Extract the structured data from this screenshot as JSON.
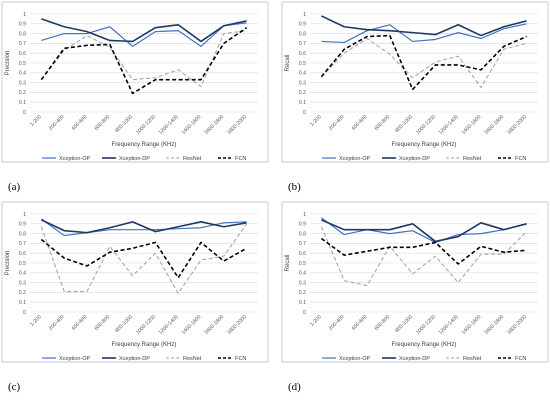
{
  "colors": {
    "Xception-OP": "#4472c4",
    "Xception-DP": "#1f3864",
    "ResNet": "#a6a6a6",
    "FCN": "#000000"
  },
  "chart_data": [
    {
      "panel": "(a)",
      "type": "line",
      "categories": [
        "1-200",
        "200-400",
        "400-600",
        "600-800",
        "800-1000",
        "1000-1200",
        "1200-1400",
        "1400-1600",
        "1600-1800",
        "1800-2000"
      ],
      "xlabel": "Frequency Range (KHz)",
      "ylabel": "Precision",
      "ylim": [
        0,
        1
      ],
      "yticks": [
        "0",
        "0.1",
        "0.2",
        "0.3",
        "0.4",
        "0.5",
        "0.6",
        "0.7",
        "0.8",
        "0.9",
        "1"
      ],
      "grid": true,
      "legend": "bottom",
      "series": [
        {
          "name": "Xception-OP",
          "style": "solid",
          "values": [
            0.73,
            0.8,
            0.8,
            0.87,
            0.67,
            0.82,
            0.83,
            0.67,
            0.88,
            0.91
          ]
        },
        {
          "name": "Xception-DP",
          "style": "solid",
          "values": [
            0.95,
            0.87,
            0.82,
            0.73,
            0.72,
            0.86,
            0.89,
            0.72,
            0.88,
            0.93
          ]
        },
        {
          "name": "ResNet",
          "style": "dashed",
          "values": [
            0.33,
            0.63,
            0.78,
            0.66,
            0.33,
            0.35,
            0.43,
            0.26,
            0.8,
            0.83
          ]
        },
        {
          "name": "FCN",
          "style": "dashed",
          "values": [
            0.33,
            0.65,
            0.68,
            0.69,
            0.19,
            0.33,
            0.33,
            0.33,
            0.7,
            0.86
          ]
        }
      ]
    },
    {
      "panel": "(b)",
      "type": "line",
      "categories": [
        "1-200",
        "200-400",
        "400-600",
        "600-800",
        "800-1000",
        "1000-1200",
        "1200-1400",
        "1400-1600",
        "1600-1800",
        "1800-2000"
      ],
      "xlabel": "Frequency Range (KHz)",
      "ylabel": "Recall",
      "ylim": [
        0,
        1
      ],
      "yticks": [
        "0",
        "0.1",
        "0.2",
        "0.3",
        "0.4",
        "0.5",
        "0.6",
        "0.7",
        "0.8",
        "0.9",
        "1"
      ],
      "grid": true,
      "legend": "bottom",
      "series": [
        {
          "name": "Xception-OP",
          "style": "solid",
          "values": [
            0.72,
            0.71,
            0.83,
            0.89,
            0.72,
            0.74,
            0.81,
            0.75,
            0.85,
            0.9
          ]
        },
        {
          "name": "Xception-DP",
          "style": "solid",
          "values": [
            0.98,
            0.87,
            0.84,
            0.83,
            0.81,
            0.79,
            0.89,
            0.78,
            0.87,
            0.93
          ]
        },
        {
          "name": "ResNet",
          "style": "dashed",
          "values": [
            0.36,
            0.6,
            0.75,
            0.59,
            0.35,
            0.51,
            0.57,
            0.25,
            0.64,
            0.7
          ]
        },
        {
          "name": "FCN",
          "style": "dashed",
          "values": [
            0.36,
            0.64,
            0.77,
            0.78,
            0.23,
            0.48,
            0.48,
            0.43,
            0.67,
            0.77
          ]
        }
      ]
    },
    {
      "panel": "(c)",
      "type": "line",
      "categories": [
        "1-200",
        "200-400",
        "400-600",
        "600-800",
        "800-1000",
        "1000-1200",
        "1200-1400",
        "1400-1600",
        "1600-1800",
        "1800-2000"
      ],
      "xlabel": "Frequency Range (KHz)",
      "ylabel": "Precision",
      "ylim": [
        0,
        1
      ],
      "yticks": [
        "0",
        "0.1",
        "0.2",
        "0.3",
        "0.4",
        "0.5",
        "0.6",
        "0.7",
        "0.8",
        "0.9",
        "1"
      ],
      "grid": true,
      "legend": "bottom",
      "series": [
        {
          "name": "Xception-OP",
          "style": "solid",
          "values": [
            0.95,
            0.78,
            0.81,
            0.84,
            0.84,
            0.84,
            0.85,
            0.86,
            0.91,
            0.92
          ]
        },
        {
          "name": "Xception-DP",
          "style": "solid",
          "values": [
            0.94,
            0.83,
            0.81,
            0.86,
            0.92,
            0.82,
            0.87,
            0.92,
            0.87,
            0.91
          ]
        },
        {
          "name": "ResNet",
          "style": "dashed",
          "values": [
            0.87,
            0.21,
            0.21,
            0.67,
            0.37,
            0.6,
            0.19,
            0.53,
            0.57,
            0.9
          ]
        },
        {
          "name": "FCN",
          "style": "dashed",
          "values": [
            0.74,
            0.55,
            0.47,
            0.61,
            0.65,
            0.71,
            0.35,
            0.71,
            0.52,
            0.65
          ]
        }
      ]
    },
    {
      "panel": "(d)",
      "type": "line",
      "categories": [
        "1-200",
        "200-400",
        "400-600",
        "600-800",
        "800-1000",
        "1000-1200",
        "1200-1400",
        "1400-1600",
        "1600-1800",
        "1800-2000"
      ],
      "xlabel": "Frequency Range (KHz)",
      "ylabel": "Recall",
      "ylim": [
        0,
        1
      ],
      "yticks": [
        "0",
        "0.1",
        "0.2",
        "0.3",
        "0.4",
        "0.5",
        "0.6",
        "0.7",
        "0.8",
        "0.9",
        "1"
      ],
      "grid": true,
      "legend": "bottom",
      "series": [
        {
          "name": "Xception-OP",
          "style": "solid",
          "values": [
            0.96,
            0.79,
            0.84,
            0.8,
            0.83,
            0.71,
            0.79,
            0.8,
            0.84,
            0.9
          ]
        },
        {
          "name": "Xception-DP",
          "style": "solid",
          "values": [
            0.94,
            0.84,
            0.84,
            0.84,
            0.9,
            0.72,
            0.77,
            0.91,
            0.84,
            0.9
          ]
        },
        {
          "name": "ResNet",
          "style": "dashed",
          "values": [
            0.87,
            0.32,
            0.27,
            0.67,
            0.39,
            0.57,
            0.3,
            0.59,
            0.59,
            0.82
          ]
        },
        {
          "name": "FCN",
          "style": "dashed",
          "values": [
            0.75,
            0.58,
            0.62,
            0.66,
            0.66,
            0.71,
            0.49,
            0.67,
            0.61,
            0.63
          ]
        }
      ]
    }
  ]
}
